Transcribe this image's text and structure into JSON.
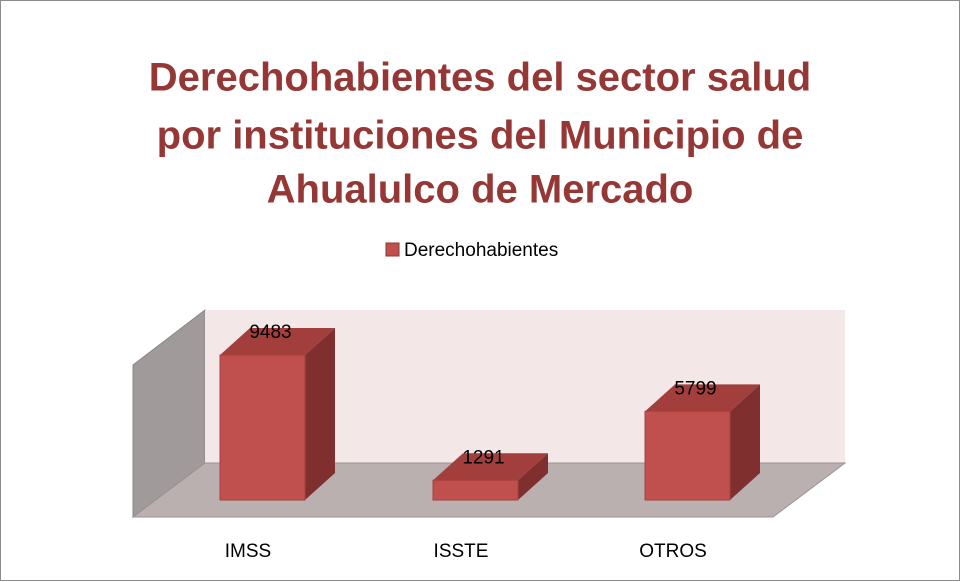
{
  "chart_data": {
    "type": "bar3d",
    "title": [
      "Derechohabientes del sector salud",
      "por instituciones del Municipio de",
      "Ahualulco de Mercado"
    ],
    "categories": [
      "IMSS",
      "ISSTE",
      "OTROS"
    ],
    "series": [
      {
        "name": "Derechohabientes",
        "color": "#c0504d",
        "values": [
          9483,
          1291,
          5799
        ]
      }
    ],
    "legend": "top"
  }
}
